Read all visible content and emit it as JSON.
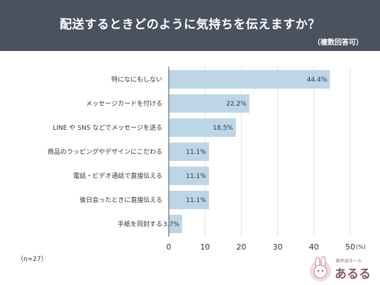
{
  "header": {
    "title": "配送するときどのように気持ちを伝えますか？",
    "subtitle": "（複数回答可）"
  },
  "footnote": "（n=27）",
  "logo": {
    "tagline": "創作品モール",
    "name": "あるる"
  },
  "chart_data": {
    "type": "bar",
    "orientation": "horizontal",
    "categories": [
      "特になにもしない",
      "メッセージカードを付ける",
      "LINE や SNS などでメッセージを送る",
      "商品のラッピングやデザインにこだわる",
      "電話・ビデオ通話で直接伝える",
      "後日会ったときに直接伝える",
      "手紙を同封する"
    ],
    "values": [
      44.4,
      22.2,
      18.5,
      11.1,
      11.1,
      11.1,
      3.7
    ],
    "value_labels": [
      "44.4%",
      "22.2%",
      "18.5%",
      "11.1%",
      "11.1%",
      "11.1%",
      "3.7%"
    ],
    "xlim": [
      0,
      50
    ],
    "xticks": [
      0,
      10,
      20,
      30,
      40,
      50
    ],
    "x_unit": "(%)",
    "bar_color": "#bcd6e8",
    "grid": true
  }
}
